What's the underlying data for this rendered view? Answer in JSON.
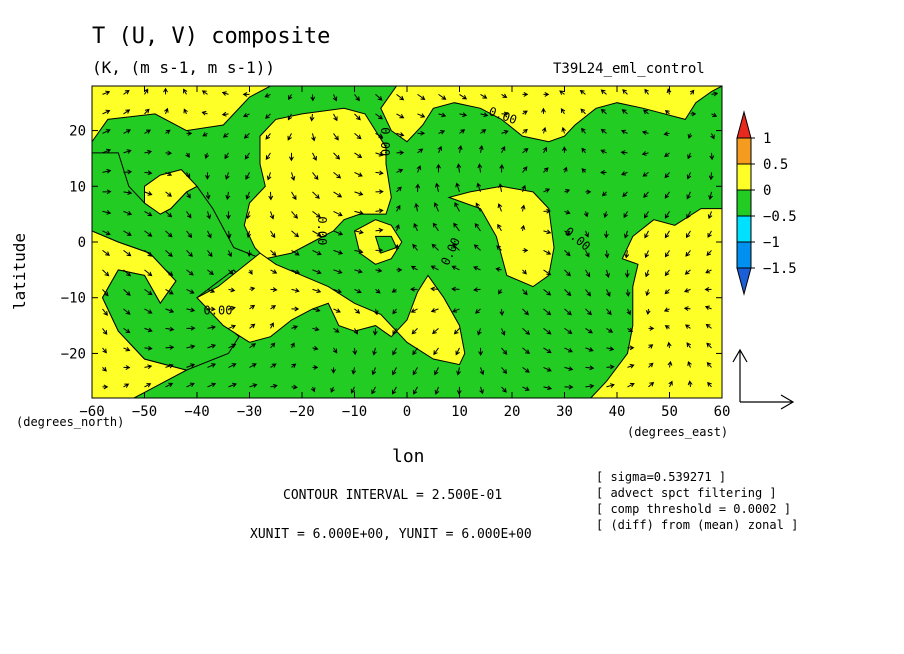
{
  "chart_data": {
    "type": "contour",
    "title": "T (U, V) composite",
    "units": "(K, (m s-1, m s-1))",
    "run_name": "T39L24_eml_control",
    "xlabel": "lon",
    "x_unit_label": "(degrees_east)",
    "y_unit_label": "(degrees_north)",
    "ylabel": "latitude",
    "xlim": [
      -60,
      60
    ],
    "ylim": [
      -28,
      28
    ],
    "x_ticks": [
      -60,
      -50,
      -40,
      -30,
      -20,
      -10,
      0,
      10,
      20,
      30,
      40,
      50,
      60
    ],
    "y_ticks": [
      -20,
      -10,
      0,
      10,
      20
    ],
    "x_tick_labels": [
      "−60",
      "−50",
      "−40",
      "−30",
      "−20",
      "−10",
      "0",
      "10",
      "20",
      "30",
      "40",
      "50",
      "60"
    ],
    "y_tick_labels": [
      "−20",
      "−10",
      "0",
      "10",
      "20"
    ],
    "contour_interval": 0.25,
    "contour_interval_text": "CONTOUR INTERVAL = 2.500E-01",
    "vector_units_text": "XUNIT = 6.000E+00, YUNIT = 6.000E+00",
    "contour_labels": [
      "0.00",
      "0.00",
      "0.00",
      "0.00",
      "0.00",
      "0.00"
    ],
    "colorbar": {
      "levels": [
        1,
        0.5,
        0,
        -0.5,
        -1,
        -1.5
      ],
      "level_labels": [
        "1",
        "0.5",
        "0",
        "−0.5",
        "−1",
        "−1.5"
      ],
      "colors": [
        "#e8291e",
        "#f59b1d",
        "#ffff28",
        "#22cc22",
        "#00e0ff",
        "#0090f0",
        "#1a5fd8"
      ]
    },
    "field_colors": {
      "positive": "#ffff28",
      "negative": "#22cc22"
    },
    "notes": [
      "[ sigma=0.539271 ]",
      "[ advect spct filtering ]",
      "[ comp threshold = 0.0002 ]",
      "[ (diff) from (mean) zonal ]"
    ],
    "green_regions": [
      [
        [
          -60,
          18
        ],
        [
          -57,
          22
        ],
        [
          -48,
          23
        ],
        [
          -42,
          20
        ],
        [
          -35,
          21
        ],
        [
          -30,
          26
        ],
        [
          -26,
          28
        ],
        [
          -2,
          28
        ],
        [
          -5,
          24
        ],
        [
          -3,
          20
        ],
        [
          0,
          18
        ],
        [
          3,
          21
        ],
        [
          5,
          24
        ],
        [
          9,
          25
        ],
        [
          14,
          24
        ],
        [
          18,
          22
        ],
        [
          22,
          19
        ],
        [
          27,
          18
        ],
        [
          30,
          19
        ],
        [
          32,
          21
        ],
        [
          36,
          24
        ],
        [
          40,
          25
        ],
        [
          45,
          24
        ],
        [
          53,
          22
        ],
        [
          55,
          25
        ],
        [
          58,
          27
        ],
        [
          60,
          28
        ],
        [
          60,
          6
        ],
        [
          56,
          6
        ],
        [
          51,
          3
        ],
        [
          47,
          4
        ],
        [
          43,
          1
        ],
        [
          41,
          -3
        ],
        [
          44,
          -4
        ],
        [
          43,
          -8
        ],
        [
          43,
          -15
        ],
        [
          42,
          -20
        ],
        [
          38,
          -25
        ],
        [
          35,
          -28
        ],
        [
          -52,
          -28
        ],
        [
          -50,
          -27
        ],
        [
          -42,
          -23
        ],
        [
          -50,
          -21
        ],
        [
          -55,
          -16
        ],
        [
          -58,
          -10
        ],
        [
          -55,
          -5
        ],
        [
          -50,
          -6
        ],
        [
          -47,
          -11
        ],
        [
          -44,
          -7
        ],
        [
          -49,
          -2
        ],
        [
          -55,
          0
        ],
        [
          -60,
          2
        ]
      ],
      [
        [
          -55,
          16
        ],
        [
          -60,
          16
        ],
        [
          -60,
          2
        ],
        [
          -55,
          0
        ],
        [
          -49,
          -2
        ],
        [
          -44,
          -7
        ],
        [
          -47,
          -11
        ],
        [
          -50,
          -6
        ],
        [
          -55,
          -5
        ],
        [
          -58,
          -10
        ],
        [
          -55,
          -16
        ],
        [
          -50,
          -21
        ],
        [
          -42,
          -23
        ],
        [
          -34,
          -20
        ],
        [
          -32,
          -17
        ],
        [
          -40,
          -10
        ],
        [
          -33,
          -5
        ],
        [
          -27,
          -12
        ],
        [
          -25,
          -4
        ],
        [
          -33,
          -1
        ],
        [
          -37,
          6
        ],
        [
          -40,
          10
        ],
        [
          -42,
          9
        ],
        [
          -45,
          6
        ],
        [
          -47,
          5
        ],
        [
          -50,
          7
        ],
        [
          -53,
          10
        ]
      ]
    ],
    "yellow_islands": [
      [
        [
          -50,
          7
        ],
        [
          -47,
          5
        ],
        [
          -45,
          6
        ],
        [
          -42,
          9
        ],
        [
          -40,
          10
        ],
        [
          -43,
          13
        ],
        [
          -47,
          12
        ],
        [
          -50,
          10
        ]
      ],
      [
        [
          -20,
          23
        ],
        [
          -25,
          22
        ],
        [
          -28,
          19
        ],
        [
          -28,
          14
        ],
        [
          -27,
          10
        ],
        [
          -30,
          7
        ],
        [
          -31,
          3
        ],
        [
          -29,
          -1
        ],
        [
          -27,
          -3
        ],
        [
          -22,
          -2
        ],
        [
          -18,
          0
        ],
        [
          -14,
          2
        ],
        [
          -12,
          4
        ],
        [
          -9,
          5
        ],
        [
          -4,
          5
        ],
        [
          -3,
          8
        ],
        [
          -4,
          14
        ],
        [
          -4,
          17
        ],
        [
          -6,
          20
        ],
        [
          -8,
          23
        ],
        [
          -12,
          24
        ]
      ],
      [
        [
          -28,
          -2
        ],
        [
          -36,
          -8
        ],
        [
          -40,
          -10
        ],
        [
          -35,
          -15
        ],
        [
          -30,
          -18
        ],
        [
          -26,
          -17
        ],
        [
          -22,
          -14
        ],
        [
          -18,
          -12
        ],
        [
          -15,
          -11
        ],
        [
          -13,
          -15
        ],
        [
          -10,
          -16
        ],
        [
          -6,
          -15
        ],
        [
          -3,
          -17
        ],
        [
          0,
          -14
        ],
        [
          2,
          -9
        ],
        [
          4,
          -6
        ],
        [
          7,
          -10
        ],
        [
          10,
          -15
        ],
        [
          11,
          -20
        ],
        [
          10,
          -22
        ],
        [
          5,
          -21
        ],
        [
          0,
          -18
        ],
        [
          -5,
          -13
        ],
        [
          -10,
          -11
        ],
        [
          -15,
          -8
        ],
        [
          -20,
          -6
        ],
        [
          -25,
          -4
        ]
      ],
      [
        [
          8,
          8
        ],
        [
          14,
          6
        ],
        [
          17,
          1
        ],
        [
          19,
          -6
        ],
        [
          24,
          -8
        ],
        [
          27,
          -6
        ],
        [
          28,
          -1
        ],
        [
          27,
          6
        ],
        [
          24,
          9
        ],
        [
          18,
          10
        ],
        [
          12,
          9
        ]
      ],
      [
        [
          -10,
          2
        ],
        [
          -6,
          4
        ],
        [
          -3,
          3
        ],
        [
          -1,
          0
        ],
        [
          -3,
          -3
        ],
        [
          -6,
          -4
        ],
        [
          -9,
          -2
        ]
      ]
    ],
    "green_holes": [
      [
        [
          -6,
          1
        ],
        [
          -3,
          1
        ],
        [
          -2,
          -1
        ],
        [
          -5,
          -2
        ]
      ]
    ]
  }
}
